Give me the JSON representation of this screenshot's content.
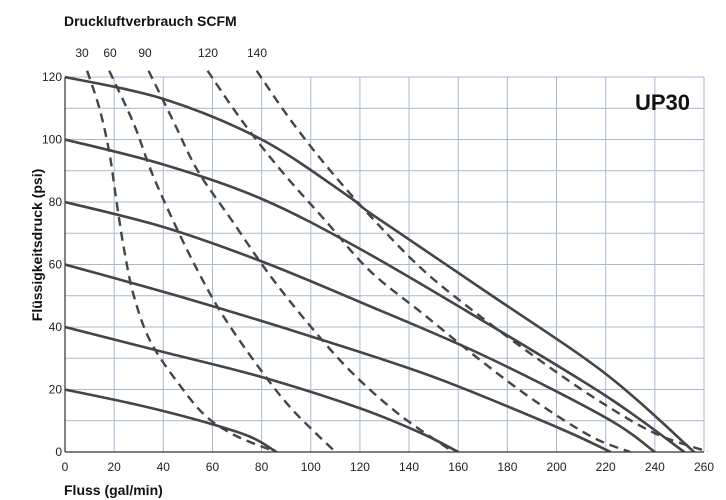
{
  "chart_data": {
    "type": "line",
    "title": "Druckluftverbrauch SCFM",
    "badge": "UP30",
    "xlabel": "Fluss (gal/min)",
    "ylabel": "Flüssigkeitsdruck (psi)",
    "xlim": [
      0,
      260
    ],
    "ylim": [
      0,
      120
    ],
    "grid": true,
    "xticks": [
      "0",
      "20",
      "40",
      "60",
      "80",
      "100",
      "120",
      "140",
      "160",
      "180",
      "200",
      "220",
      "240",
      "260"
    ],
    "yticks": [
      "0",
      "20",
      "40",
      "60",
      "80",
      "100",
      "120"
    ],
    "air_consumption_labels": [
      "30",
      "60",
      "90",
      "120",
      "140"
    ],
    "series": [
      {
        "style": "solid",
        "x": [
          0,
          30,
          55,
          75,
          86
        ],
        "y": [
          20,
          15,
          10,
          5,
          0
        ]
      },
      {
        "style": "solid",
        "x": [
          0,
          40,
          80,
          120,
          145,
          160
        ],
        "y": [
          40,
          32,
          24,
          14,
          6,
          0
        ]
      },
      {
        "style": "solid",
        "x": [
          0,
          50,
          100,
          150,
          200,
          222
        ],
        "y": [
          60,
          49,
          37,
          24,
          8,
          0
        ]
      },
      {
        "style": "solid",
        "x": [
          0,
          40,
          80,
          120,
          170,
          220,
          240
        ],
        "y": [
          80,
          72,
          61,
          48,
          31,
          11,
          0
        ]
      },
      {
        "style": "solid",
        "x": [
          0,
          40,
          80,
          120,
          170,
          220,
          252
        ],
        "y": [
          100,
          92,
          81,
          65,
          42,
          18,
          0
        ]
      },
      {
        "style": "solid",
        "x": [
          0,
          40,
          80,
          115,
          125,
          170,
          220,
          256
        ],
        "y": [
          120,
          113,
          100,
          82,
          76,
          52,
          25,
          0
        ]
      },
      {
        "style": "dashed",
        "x": [
          9,
          14,
          18,
          21,
          24,
          28,
          35,
          48,
          58,
          70,
          86
        ],
        "y": [
          122,
          110,
          96,
          80,
          65,
          50,
          35,
          20,
          11,
          5,
          0
        ]
      },
      {
        "style": "dashed",
        "x": [
          18,
          28,
          35,
          44,
          54,
          64,
          78,
          92,
          110
        ],
        "y": [
          122,
          105,
          90,
          74,
          58,
          44,
          28,
          14,
          0
        ]
      },
      {
        "style": "dashed",
        "x": [
          34,
          44,
          54,
          68,
          82,
          98,
          116,
          136,
          158
        ],
        "y": [
          122,
          106,
          90,
          74,
          58,
          42,
          26,
          12,
          0
        ]
      },
      {
        "style": "dashed",
        "x": [
          58,
          72,
          88,
          106,
          124,
          146,
          168,
          190,
          214,
          230
        ],
        "y": [
          122,
          106,
          90,
          74,
          58,
          44,
          30,
          17,
          5,
          0
        ]
      },
      {
        "style": "dashed",
        "x": [
          78,
          92,
          108,
          126,
          146,
          168,
          192,
          216,
          240,
          262
        ],
        "y": [
          122,
          106,
          90,
          74,
          58,
          44,
          30,
          17,
          6,
          0
        ]
      }
    ]
  }
}
